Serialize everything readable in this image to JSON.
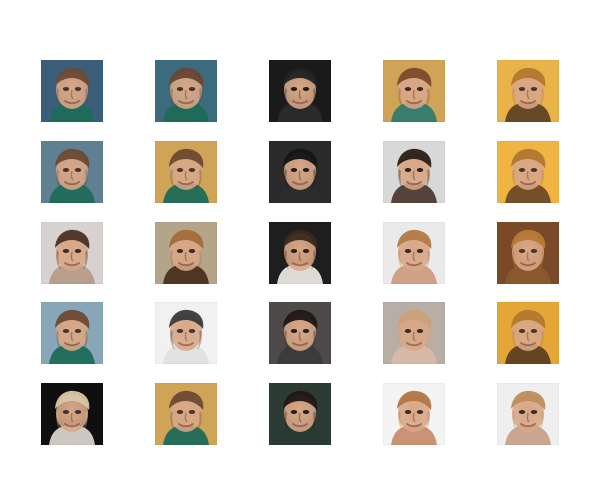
{
  "grid": {
    "rows": 5,
    "cols": 5,
    "tiles": [
      {
        "bg": "#3b5e7a",
        "skin": "#d8a786",
        "hair": "#6b4a33",
        "shirt": "#1e6b5a",
        "eyes": "#3a2a1f"
      },
      {
        "bg": "#3d6b7e",
        "skin": "#d2a285",
        "hair": "#6a4631",
        "shirt": "#1e6c57",
        "eyes": "#35271e"
      },
      {
        "bg": "#1a1a1a",
        "skin": "#4b3d33",
        "hair": "#222222",
        "shirt": "#2b2b2b",
        "eyes": "#0f0f0f"
      },
      {
        "bg": "#cfa457",
        "skin": "#dba38a",
        "hair": "#7a4a2b",
        "shirt": "#2f7b6f",
        "eyes": "#2a1f18"
      },
      {
        "bg": "#e9b34a",
        "skin": "#d4a27a",
        "hair": "#b4782e",
        "shirt": "#5f4324",
        "eyes": "#3a2a1f"
      },
      {
        "bg": "#5f7f93",
        "skin": "#ddb192",
        "hair": "#6b4a33",
        "shirt": "#1f6b5a",
        "eyes": "#3a2a1f"
      },
      {
        "bg": "#cfa457",
        "skin": "#d9aa8a",
        "hair": "#6b4a33",
        "shirt": "#1e6b5a",
        "eyes": "#3a2a1f"
      },
      {
        "bg": "#2a2a2a",
        "skin": "#6a5646",
        "hair": "#141414",
        "shirt": "#2c2c2c",
        "eyes": "#111111"
      },
      {
        "bg": "#d8d8d8",
        "skin": "#b98f73",
        "hair": "#2a1f18",
        "shirt": "#4d3b2f",
        "eyes": "#1b1410"
      },
      {
        "bg": "#f0b443",
        "skin": "#d5a47a",
        "hair": "#b17631",
        "shirt": "#6b4b29",
        "eyes": "#3a2a1f"
      },
      {
        "bg": "#d7d1cf",
        "skin": "#d6b1a3",
        "hair": "#4a3226",
        "shirt": "#b89b8a",
        "eyes": "#2a1f18"
      },
      {
        "bg": "#b4a48a",
        "skin": "#dcb38f",
        "hair": "#a36b39",
        "shirt": "#4a2f1f",
        "eyes": "#2a1f18"
      },
      {
        "bg": "#1e1e1e",
        "skin": "#c99b7c",
        "hair": "#3a2a1f",
        "shirt": "#e9e5df",
        "eyes": "#1b1410"
      },
      {
        "bg": "#eaeaea",
        "skin": "#e1b49a",
        "hair": "#b27a46",
        "shirt": "#cf9d81",
        "eyes": "#2a1f18"
      },
      {
        "bg": "#7a4a28",
        "skin": "#cfa07c",
        "hair": "#b67a35",
        "shirt": "#8a5a2e",
        "eyes": "#3a2a1f"
      },
      {
        "bg": "#87a6b8",
        "skin": "#d9a98a",
        "hair": "#6b4a33",
        "shirt": "#1e6b5a",
        "eyes": "#3a2a1f"
      },
      {
        "bg": "#f1f1f1",
        "skin": "#cfc8c6",
        "hair": "#3a3a3a",
        "shirt": "#e0e0e0",
        "eyes": "#2a2a2a"
      },
      {
        "bg": "#4f4a4a",
        "skin": "#3e3230",
        "hair": "#1d1716",
        "shirt": "#3a3a3a",
        "eyes": "#111111"
      },
      {
        "bg": "#b8aea6",
        "skin": "#e3c0aa",
        "hair": "#c9a17a",
        "shirt": "#d8b9a8",
        "eyes": "#2a1f18"
      },
      {
        "bg": "#e4a636",
        "skin": "#d1a07a",
        "hair": "#b4782e",
        "shirt": "#5d3f22",
        "eyes": "#3a2a1f"
      },
      {
        "bg": "#0f0f0f",
        "skin": "#e7d4c6",
        "hair": "#d7c7a8",
        "shirt": "#d8d2cb",
        "eyes": "#2a2a2a"
      },
      {
        "bg": "#cfa457",
        "skin": "#d9aa8a",
        "hair": "#6b4a33",
        "shirt": "#1e6b5a",
        "eyes": "#3a2a1f"
      },
      {
        "bg": "#2d3b35",
        "skin": "#5b4738",
        "hair": "#1d1716",
        "shirt": "#2a3a34",
        "eyes": "#111111"
      },
      {
        "bg": "#f4f4f4",
        "skin": "#e1b39a",
        "hair": "#b37545",
        "shirt": "#c88c6e",
        "eyes": "#2a1f18"
      },
      {
        "bg": "#efefef",
        "skin": "#ddb193",
        "hair": "#c08c5b",
        "shirt": "#c7a08a",
        "eyes": "#2a1f18"
      }
    ]
  }
}
